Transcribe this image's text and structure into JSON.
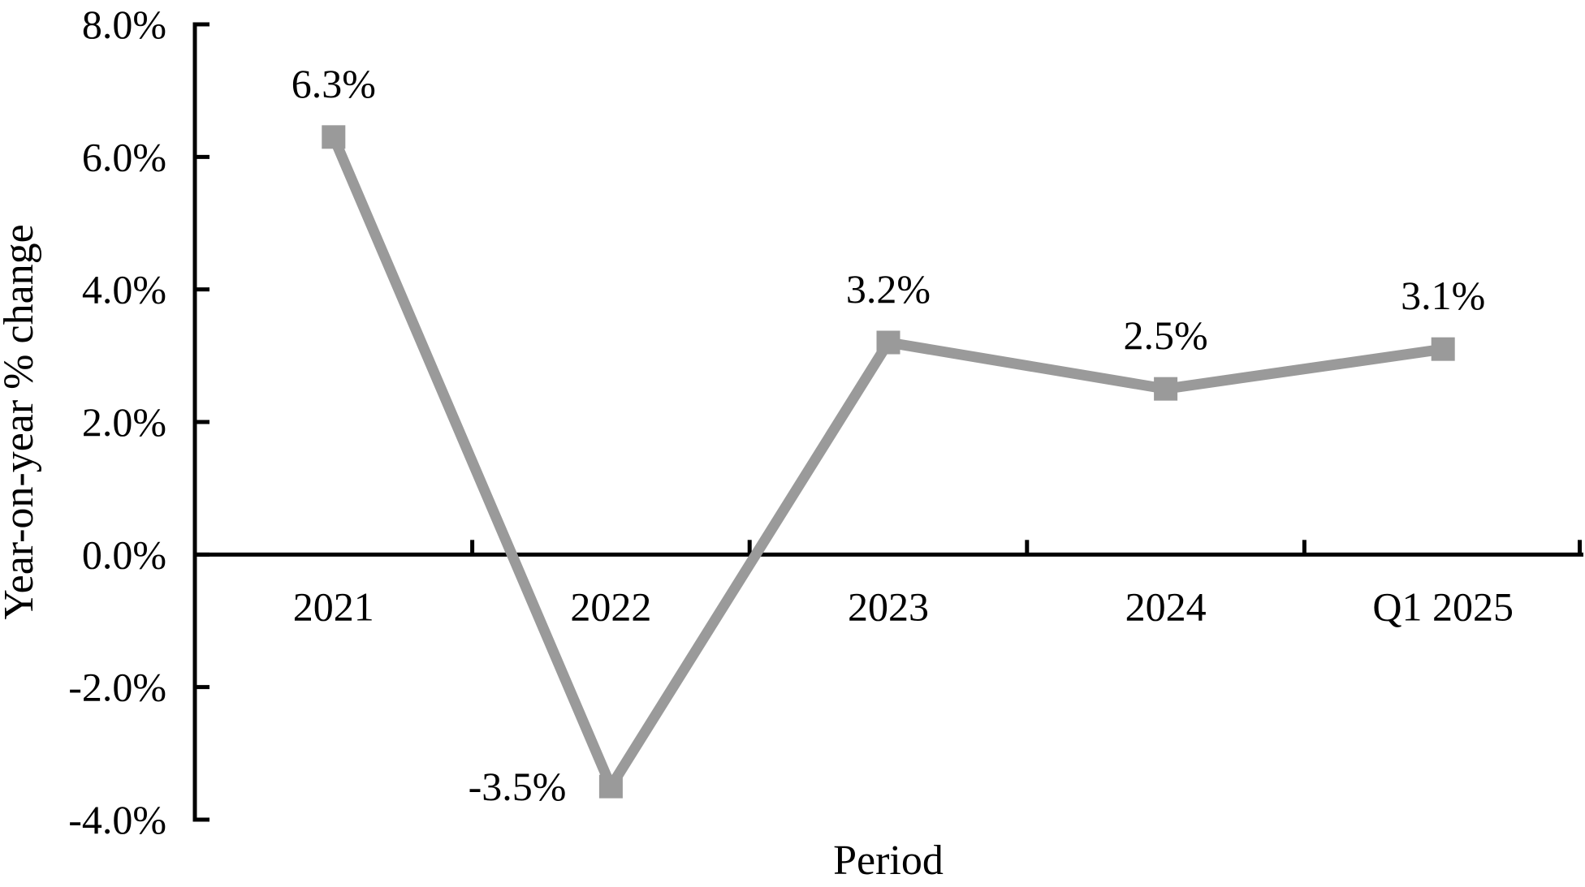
{
  "chart_data": {
    "type": "line",
    "title": "",
    "xlabel": "Period",
    "ylabel": "Year-on-year % change",
    "categories": [
      "2021",
      "2022",
      "2023",
      "2024",
      "Q1 2025"
    ],
    "series": [
      {
        "name": "Year-on-year % change",
        "values": [
          6.3,
          -3.5,
          3.2,
          2.5,
          3.1
        ]
      }
    ],
    "data_labels": [
      "6.3%",
      "-3.5%",
      "3.2%",
      "2.5%",
      "3.1%"
    ],
    "y_ticks": [
      {
        "value": 8,
        "label": "8.0%"
      },
      {
        "value": 6,
        "label": "6.0%"
      },
      {
        "value": 4,
        "label": "4.0%"
      },
      {
        "value": 2,
        "label": "2.0%"
      },
      {
        "value": 0,
        "label": "0.0%"
      },
      {
        "value": -2,
        "label": "-2.0%"
      },
      {
        "value": -4,
        "label": "-4.0%"
      }
    ],
    "ylim": [
      -4,
      8
    ],
    "grid": false,
    "legend": false,
    "marker": "square",
    "line_color": "#9a9a9a",
    "axis_color": "#000000",
    "label_color": "#000000"
  }
}
